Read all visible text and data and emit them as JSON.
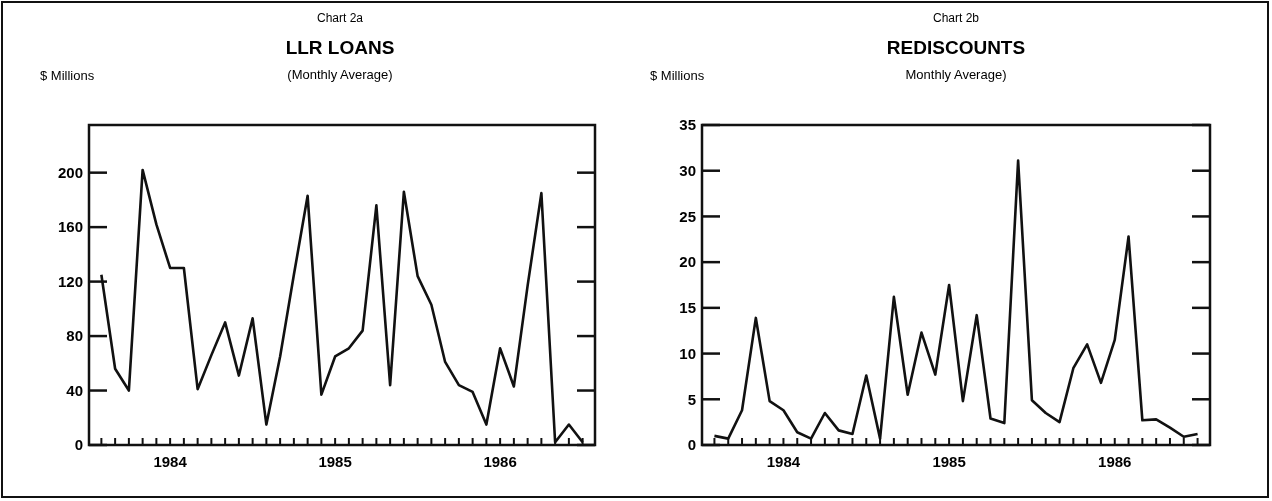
{
  "chart_data": [
    {
      "type": "line",
      "annotations": [
        "Chart 2a"
      ],
      "title": "LLR LOANS",
      "subtitle": "(Monthly Average)",
      "ylabel": "$ Millions",
      "categories": [
        null,
        null,
        null,
        null,
        null,
        "1984",
        null,
        null,
        null,
        null,
        null,
        null,
        null,
        null,
        null,
        null,
        null,
        "1985",
        null,
        null,
        null,
        null,
        null,
        null,
        null,
        null,
        null,
        null,
        null,
        "1986",
        null,
        null,
        null,
        null,
        null,
        null
      ],
      "series": [
        {
          "color": "#111111",
          "values": [
            125,
            56,
            40,
            202,
            162,
            130,
            130,
            41,
            66,
            90,
            51,
            93,
            15,
            65,
            125,
            183,
            37,
            65,
            71,
            84,
            176,
            44,
            186,
            124,
            103,
            61,
            44,
            39,
            15,
            71,
            43,
            117,
            185,
            2,
            15,
            2
          ]
        }
      ],
      "ylim": [
        0,
        235
      ],
      "yticks": [
        0,
        40,
        80,
        120,
        160,
        200
      ],
      "marker": "none",
      "line_style": "solid",
      "grid": false
    },
    {
      "type": "line",
      "annotations": [
        "Chart 2b"
      ],
      "title": "REDISCOUNTS",
      "subtitle": "Monthly Average)",
      "ylabel": "$ Millions",
      "categories": [
        null,
        null,
        null,
        null,
        null,
        "1984",
        null,
        null,
        null,
        null,
        null,
        null,
        null,
        null,
        null,
        null,
        null,
        "1985",
        null,
        null,
        null,
        null,
        null,
        null,
        null,
        null,
        null,
        null,
        null,
        "1986",
        null,
        null,
        null,
        null,
        null,
        null
      ],
      "series": [
        {
          "color": "#111111",
          "values": [
            1.0,
            0.7,
            3.8,
            13.9,
            4.8,
            3.8,
            1.4,
            0.7,
            3.5,
            1.6,
            1.2,
            7.6,
            0.7,
            16.2,
            5.5,
            12.3,
            7.7,
            17.5,
            4.8,
            14.2,
            2.9,
            2.4,
            31.1,
            4.9,
            3.5,
            2.5,
            8.4,
            11.0,
            6.8,
            11.5,
            22.8,
            2.7,
            2.8,
            1.9,
            0.9,
            1.2
          ]
        }
      ],
      "ylim": [
        0,
        35
      ],
      "yticks": [
        0,
        5,
        10,
        15,
        20,
        25,
        30,
        35
      ],
      "marker": "none",
      "line_style": "solid",
      "grid": false
    }
  ]
}
